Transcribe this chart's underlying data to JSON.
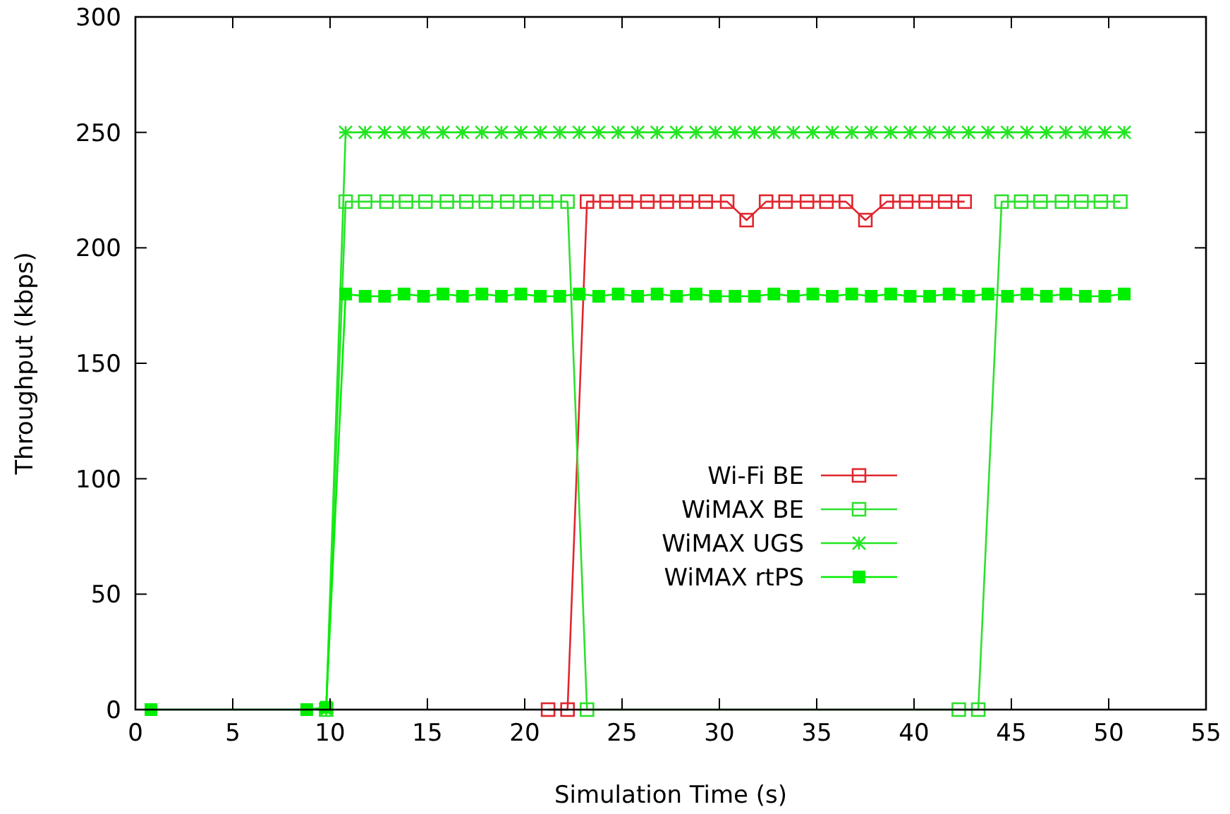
{
  "chart_data": {
    "type": "line",
    "xlabel": "Simulation Time (s)",
    "ylabel": "Throughput (kbps)",
    "xlim": [
      0,
      55
    ],
    "ylim": [
      0,
      300
    ],
    "xticks": [
      0,
      5,
      10,
      15,
      20,
      25,
      30,
      35,
      40,
      45,
      50,
      55
    ],
    "yticks": [
      0,
      50,
      100,
      150,
      200,
      250,
      300
    ],
    "grid": false,
    "legend": "center right",
    "line_style": "solid",
    "series": [
      {
        "name": "Wi-Fi BE",
        "color": "#e0262e",
        "marker": "square",
        "x": [
          21.2,
          22.2,
          23.2,
          24.2,
          25.2,
          26.3,
          27.3,
          28.3,
          29.3,
          30.4,
          31.4,
          32.4,
          33.4,
          34.5,
          35.5,
          36.5,
          37.5,
          38.6,
          39.6,
          40.6,
          41.6,
          42.6
        ],
        "values": [
          0,
          0,
          220,
          220,
          220,
          220,
          220,
          220,
          220,
          220,
          212,
          220,
          220,
          220,
          220,
          220,
          212,
          220,
          220,
          220,
          220,
          220
        ]
      },
      {
        "name": "WiMAX BE",
        "color": "#2ee02e",
        "marker": "square",
        "x": [
          9.8,
          10.8,
          11.8,
          12.9,
          13.9,
          14.9,
          16.0,
          17.0,
          18.0,
          19.1,
          20.1,
          21.1,
          22.2,
          23.2,
          42.3,
          43.3,
          44.5,
          45.5,
          46.5,
          47.6,
          48.6,
          49.6,
          50.6
        ],
        "values": [
          0,
          220,
          220,
          220,
          220,
          220,
          220,
          220,
          220,
          220,
          220,
          220,
          220,
          0,
          0,
          0,
          220,
          220,
          220,
          220,
          220,
          220,
          220
        ]
      },
      {
        "name": "WiMAX UGS",
        "color": "#22e622",
        "marker": "cross",
        "x": [
          9.8,
          10.8,
          11.8,
          12.8,
          13.8,
          14.8,
          15.8,
          16.8,
          17.8,
          18.8,
          19.8,
          20.8,
          21.8,
          22.8,
          23.8,
          24.8,
          25.8,
          26.8,
          27.8,
          28.8,
          29.8,
          30.8,
          31.8,
          32.8,
          33.8,
          34.8,
          35.8,
          36.8,
          37.8,
          38.8,
          39.8,
          40.8,
          41.8,
          42.8,
          43.8,
          44.8,
          45.8,
          46.8,
          47.8,
          48.8,
          49.8,
          50.8
        ],
        "values": [
          0,
          250,
          250,
          250,
          250,
          250,
          250,
          250,
          250,
          250,
          250,
          250,
          250,
          250,
          250,
          250,
          250,
          250,
          250,
          250,
          250,
          250,
          250,
          250,
          250,
          250,
          250,
          250,
          250,
          250,
          250,
          250,
          250,
          250,
          250,
          250,
          250,
          250,
          250,
          250,
          250,
          250
        ]
      },
      {
        "name": "WiMAX rtPS",
        "color": "#00ee00",
        "marker": "square",
        "x": [
          0.8,
          8.8,
          9.8,
          10.8,
          11.8,
          12.8,
          13.8,
          14.8,
          15.8,
          16.8,
          17.8,
          18.8,
          19.8,
          20.8,
          21.8,
          22.8,
          23.8,
          24.8,
          25.8,
          26.8,
          27.8,
          28.8,
          29.8,
          30.8,
          31.8,
          32.8,
          33.8,
          34.8,
          35.8,
          36.8,
          37.8,
          38.8,
          39.8,
          40.8,
          41.8,
          42.8,
          43.8,
          44.8,
          45.8,
          46.8,
          47.8,
          48.8,
          49.8,
          50.8
        ],
        "values": [
          0,
          0,
          1,
          180,
          179,
          179,
          180,
          179,
          180,
          179,
          180,
          179,
          180,
          179,
          179,
          180,
          179,
          180,
          179,
          180,
          179,
          180,
          179,
          179,
          179,
          180,
          179,
          180,
          179,
          180,
          179,
          180,
          179,
          179,
          180,
          179,
          180,
          179,
          180,
          179,
          180,
          179,
          179,
          180
        ]
      }
    ]
  }
}
